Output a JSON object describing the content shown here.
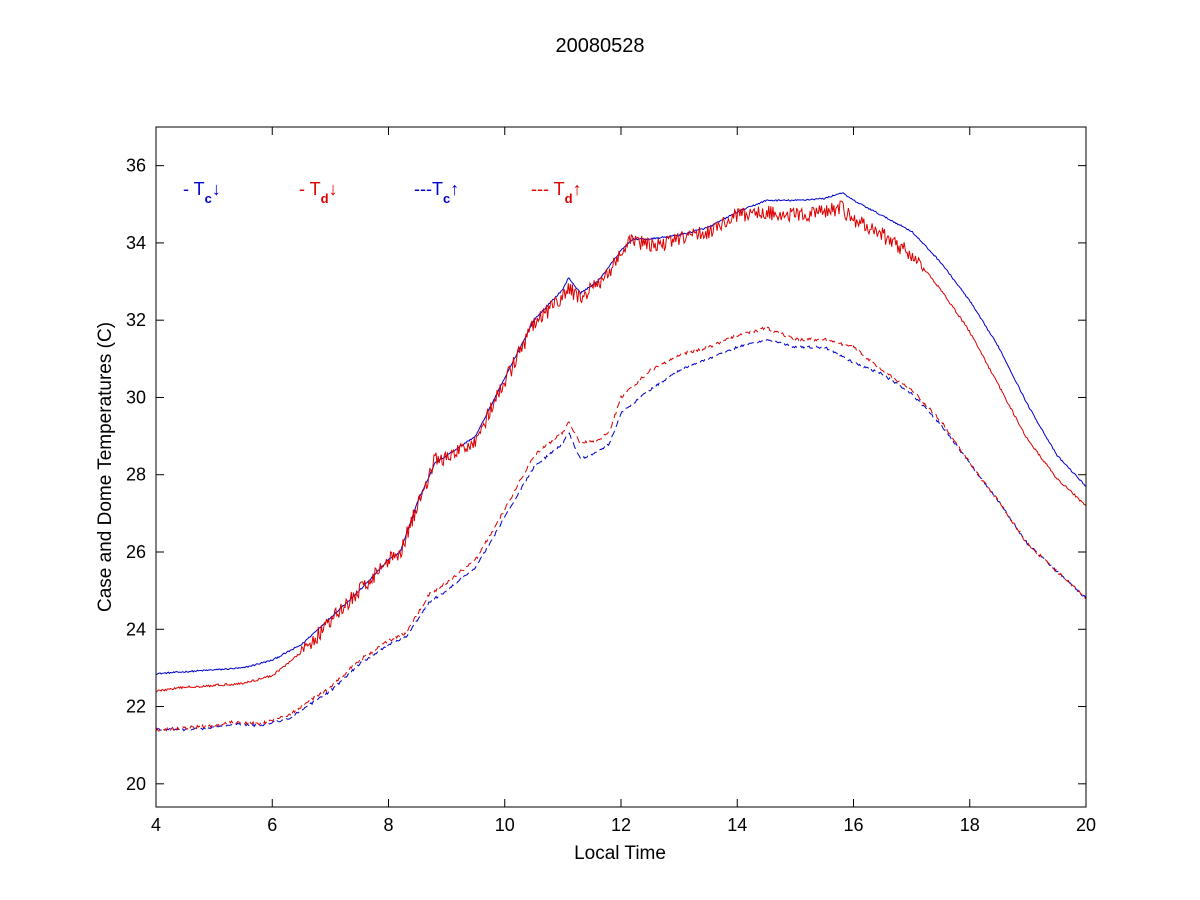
{
  "chart_data": {
    "type": "line",
    "title": "20080528",
    "xlabel": "Local Time",
    "ylabel": "Case and Dome Temperatures (C)",
    "xlim": [
      4,
      20
    ],
    "ylim": [
      19.4,
      37
    ],
    "xticks": [
      4,
      6,
      8,
      10,
      12,
      14,
      16,
      18,
      20
    ],
    "yticks": [
      20,
      22,
      24,
      26,
      28,
      30,
      32,
      34,
      36
    ],
    "xtick_labels": [
      "4",
      "6",
      "8",
      "10",
      "12",
      "14",
      "16",
      "18",
      "20"
    ],
    "ytick_labels": [
      "20",
      "22",
      "24",
      "26",
      "28",
      "30",
      "32",
      "34",
      "36"
    ],
    "grid": false,
    "legend_position": "top-left, inside axes, horizontal",
    "series": [
      {
        "name": "- Tc↓",
        "legend_prefix": "- T",
        "legend_sub": "c",
        "legend_arrow": "↓",
        "color": "#0000cc",
        "dash": "solid",
        "noise": 0.02,
        "x": [
          4,
          4.5,
          5,
          5.5,
          6,
          6.5,
          7,
          7.5,
          8,
          8.2,
          8.5,
          8.8,
          9,
          9.5,
          10,
          10.5,
          11,
          11.1,
          11.3,
          11.6,
          12,
          12.2,
          12.5,
          13,
          13.5,
          14,
          14.5,
          15,
          15.5,
          15.8,
          16,
          16.5,
          17,
          17.5,
          18,
          18.5,
          19,
          19.5,
          20
        ],
        "y": [
          22.85,
          22.9,
          22.95,
          23.0,
          23.2,
          23.6,
          24.3,
          25.0,
          25.8,
          26.0,
          27.3,
          28.3,
          28.5,
          29.0,
          30.5,
          32.0,
          32.8,
          33.1,
          32.7,
          33.0,
          33.8,
          34.1,
          34.1,
          34.2,
          34.4,
          34.8,
          35.1,
          35.1,
          35.15,
          35.3,
          35.1,
          34.7,
          34.3,
          33.5,
          32.5,
          31.3,
          29.8,
          28.5,
          27.7
        ]
      },
      {
        "name": "- Td↓",
        "legend_prefix": "- T",
        "legend_sub": "d",
        "legend_arrow": "↓",
        "color": "#dd0000",
        "dash": "solid",
        "noise": 0.2,
        "x": [
          4,
          4.5,
          5,
          5.5,
          6,
          6.5,
          7,
          7.5,
          8,
          8.2,
          8.5,
          8.8,
          9,
          9.5,
          10,
          10.5,
          11,
          11.1,
          11.3,
          11.6,
          12,
          12.2,
          12.5,
          13,
          13.5,
          14,
          14.5,
          15,
          15.5,
          15.8,
          16,
          16.5,
          17,
          17.5,
          18,
          18.5,
          19,
          19.5,
          20
        ],
        "y": [
          22.4,
          22.5,
          22.55,
          22.6,
          22.8,
          23.4,
          24.2,
          25.0,
          25.8,
          26.0,
          27.2,
          28.4,
          28.4,
          28.9,
          30.4,
          31.9,
          32.6,
          32.8,
          32.6,
          32.9,
          33.7,
          34.1,
          33.9,
          34.1,
          34.3,
          34.7,
          34.8,
          34.7,
          34.8,
          34.9,
          34.6,
          34.2,
          33.7,
          32.8,
          31.7,
          30.3,
          28.9,
          27.9,
          27.2
        ]
      },
      {
        "name": "---Tc↑",
        "legend_prefix": "---T",
        "legend_sub": "c",
        "legend_arrow": "↑",
        "color": "#0000cc",
        "dash": "dashed",
        "noise": 0.03,
        "x": [
          4,
          4.5,
          5,
          5.3,
          5.8,
          6.3,
          7,
          7.5,
          8,
          8.3,
          8.7,
          9,
          9.5,
          10,
          10.5,
          11,
          11.1,
          11.3,
          11.6,
          11.8,
          12,
          12.5,
          13,
          13.5,
          14,
          14.5,
          15,
          15.5,
          16,
          16.5,
          17,
          17.5,
          18,
          18.5,
          19,
          19.5,
          20
        ],
        "y": [
          21.4,
          21.4,
          21.45,
          21.55,
          21.5,
          21.7,
          22.4,
          23.1,
          23.6,
          23.8,
          24.7,
          25.0,
          25.6,
          26.9,
          28.2,
          28.8,
          29.1,
          28.4,
          28.6,
          28.8,
          29.6,
          30.2,
          30.7,
          31.0,
          31.3,
          31.5,
          31.3,
          31.3,
          30.9,
          30.6,
          30.1,
          29.3,
          28.3,
          27.3,
          26.2,
          25.5,
          24.8
        ]
      },
      {
        "name": "--- Td↑",
        "legend_prefix": "--- T",
        "legend_sub": "d",
        "legend_arrow": "↑",
        "color": "#dd0000",
        "dash": "dashed",
        "noise": 0.04,
        "x": [
          4,
          4.5,
          5,
          5.3,
          5.8,
          6.3,
          7,
          7.5,
          8,
          8.3,
          8.7,
          9,
          9.5,
          10,
          10.5,
          11,
          11.1,
          11.3,
          11.6,
          11.8,
          12,
          12.5,
          13,
          13.5,
          14,
          14.5,
          15,
          15.5,
          16,
          16.5,
          17,
          17.5,
          18,
          18.5,
          19,
          19.5,
          20
        ],
        "y": [
          21.4,
          21.45,
          21.5,
          21.6,
          21.55,
          21.8,
          22.5,
          23.2,
          23.7,
          23.9,
          24.9,
          25.2,
          25.8,
          27.1,
          28.5,
          29.1,
          29.4,
          28.8,
          28.9,
          29.1,
          30.0,
          30.7,
          31.1,
          31.3,
          31.6,
          31.8,
          31.5,
          31.5,
          31.3,
          30.7,
          30.2,
          29.4,
          28.3,
          27.3,
          26.2,
          25.5,
          24.8
        ]
      }
    ]
  }
}
